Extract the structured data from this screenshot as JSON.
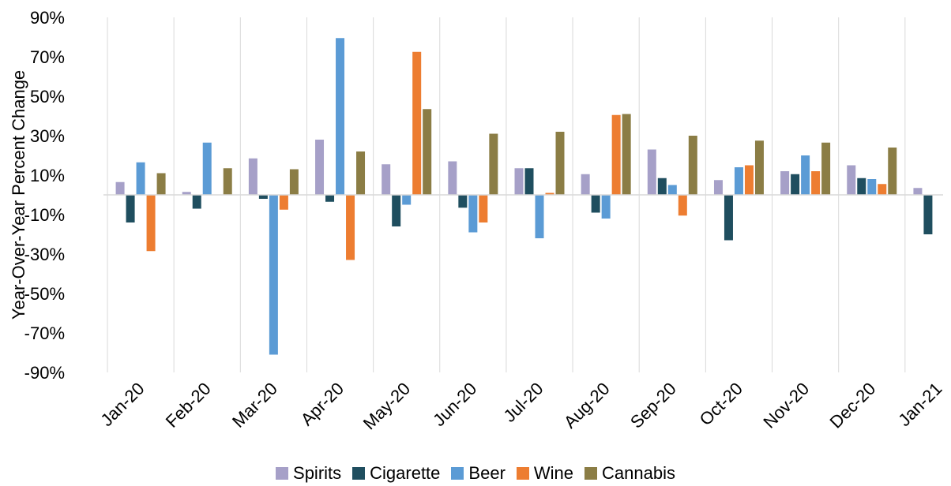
{
  "chart_data": {
    "type": "bar",
    "title": "",
    "xlabel": "",
    "ylabel": "Year-Over-Year Percent Change",
    "ylim": [
      -90,
      90
    ],
    "ytick_values": [
      -90,
      -70,
      -50,
      -30,
      -10,
      10,
      30,
      50,
      70,
      90
    ],
    "ytick_labels": [
      "-90%",
      "-70%",
      "-50%",
      "-30%",
      "-10%",
      "10%",
      "30%",
      "50%",
      "70%",
      "90%"
    ],
    "categories": [
      "Jan-20",
      "Feb-20",
      "Mar-20",
      "Apr-20",
      "May-20",
      "Jun-20",
      "Jul-20",
      "Aug-20",
      "Sep-20",
      "Oct-20",
      "Nov-20",
      "Dec-20",
      "Jan-21"
    ],
    "grid": "vertical",
    "legend_position": "bottom",
    "series": [
      {
        "name": "Spirits",
        "color": "#a6a0c8",
        "values": [
          6.5,
          1.5,
          18.5,
          28,
          15.5,
          17,
          13.5,
          10.5,
          23,
          7.5,
          12,
          15,
          3.5
        ]
      },
      {
        "name": "Cigarette",
        "color": "#1f4e5f",
        "values": [
          -14,
          -7,
          -2,
          -3.5,
          -16,
          -6.5,
          13.5,
          -9,
          8.5,
          -23,
          10.5,
          8.5,
          -20
        ]
      },
      {
        "name": "Beer",
        "color": "#5b9bd5",
        "values": [
          16.5,
          26.5,
          -81,
          79.5,
          -5,
          -19,
          -22,
          -12,
          5,
          14,
          20,
          8,
          null
        ]
      },
      {
        "name": "Wine",
        "color": "#ed7d31",
        "values": [
          -28.5,
          null,
          -7.5,
          -33,
          72.5,
          -14,
          1,
          40.5,
          -10.5,
          15,
          12,
          5.5,
          null
        ]
      },
      {
        "name": "Cannabis",
        "color": "#8b7d45",
        "values": [
          11,
          13.5,
          13,
          22,
          43.5,
          31,
          32,
          41,
          30,
          27.5,
          26.5,
          24,
          null
        ]
      }
    ]
  }
}
